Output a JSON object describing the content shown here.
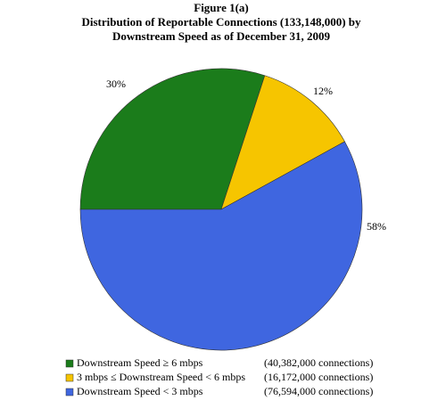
{
  "chart_data": {
    "type": "pie",
    "title": "Figure 1(a)",
    "subtitle": [
      "Distribution of Reportable Connections (133,148,000) by",
      "Downstream Speed as of December 31, 2009"
    ],
    "categories": [
      "Downstream Speed ≥ 6 mbps",
      "3 mbps ≤ Downstream Speed < 6 mbps",
      "Downstream Speed < 3 mbps"
    ],
    "values": [
      30,
      12,
      58
    ],
    "value_labels": [
      "30%",
      "12%",
      "58%"
    ],
    "notes": [
      "(40,382,000 connections)",
      "(16,172,000 connections)",
      "(76,594,000 connections)"
    ],
    "colors": [
      "#1b7c1b",
      "#f6c500",
      "#3f66e0"
    ]
  }
}
